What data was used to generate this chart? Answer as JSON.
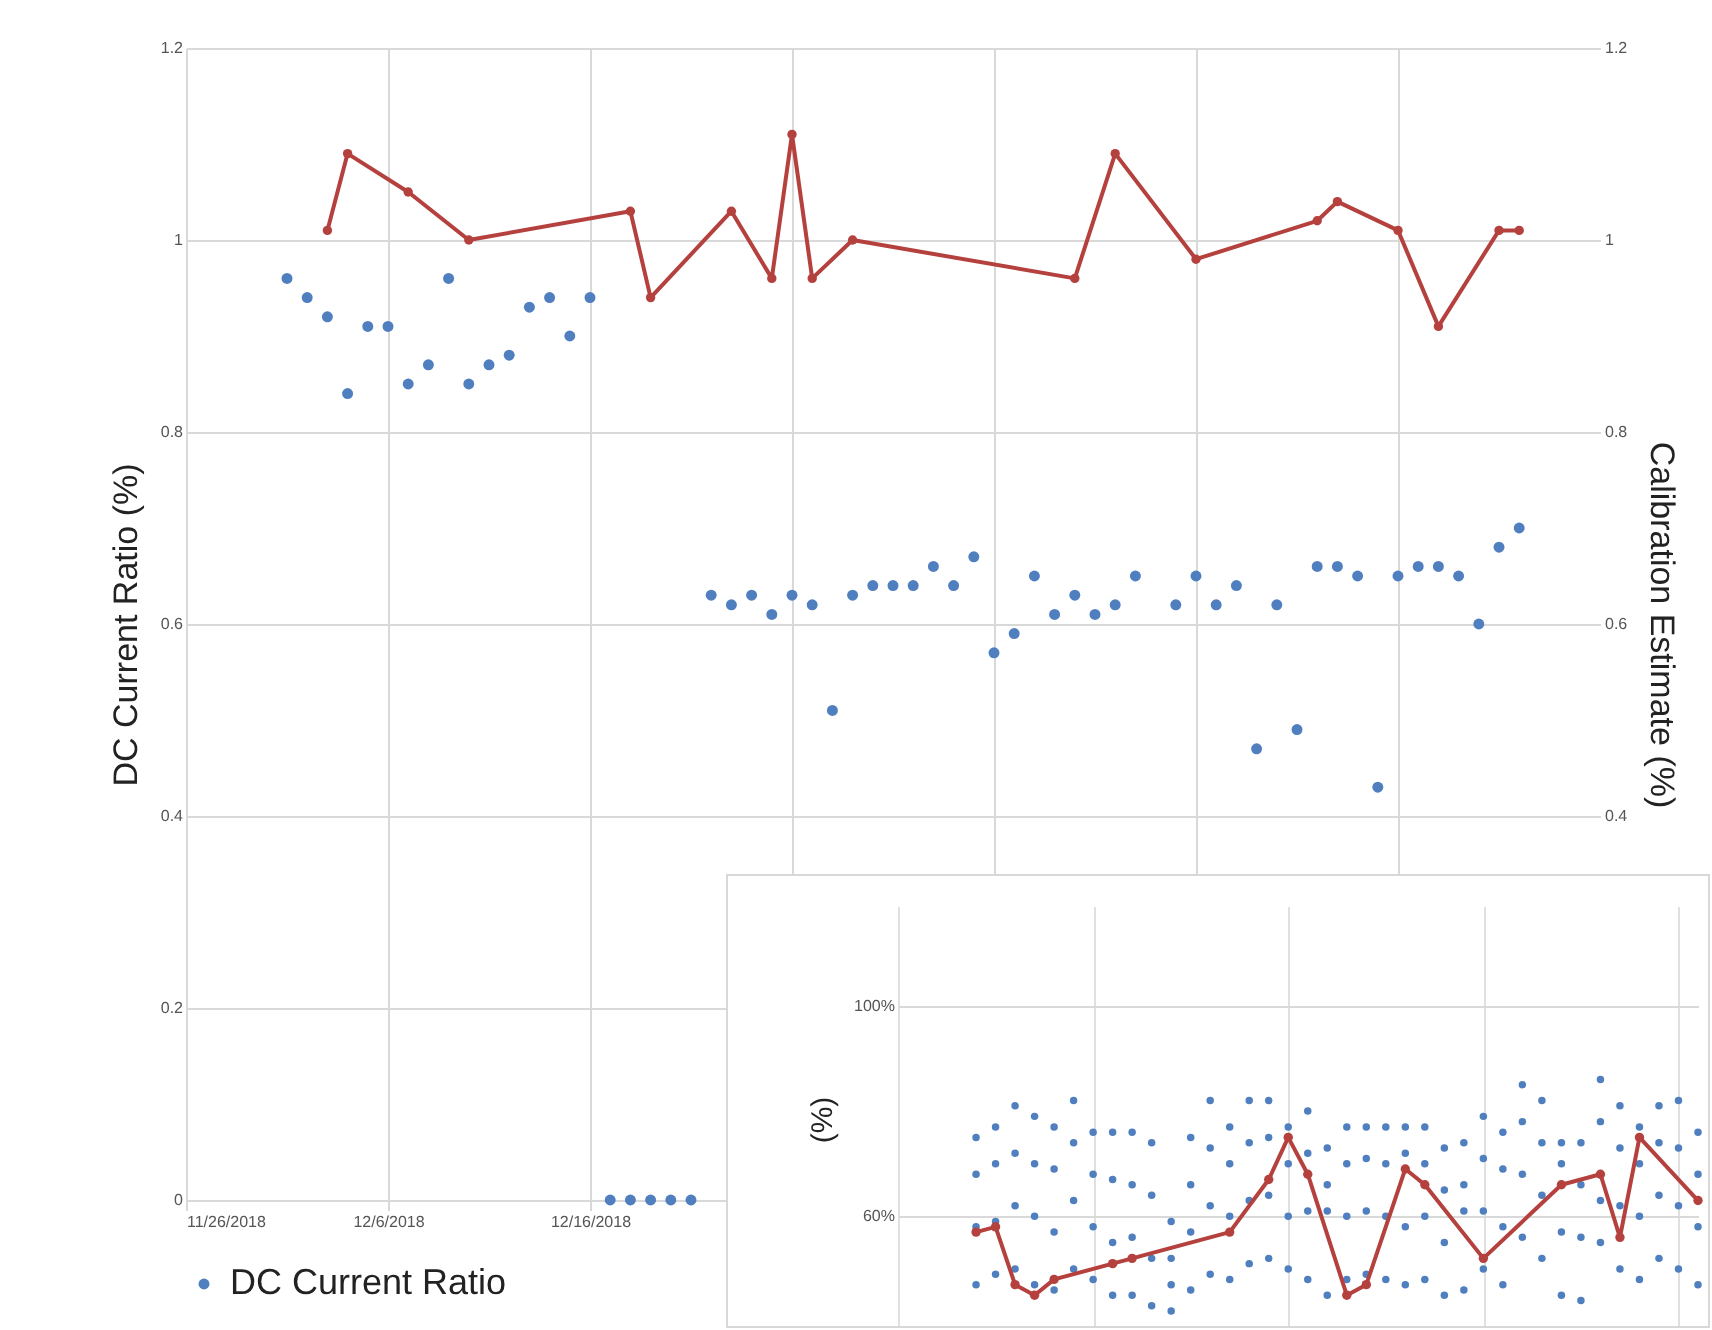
{
  "chart_data": [
    {
      "type": "scatter",
      "ylabel": "DC Current Ratio (%)",
      "y2label": "Calibration Estimate (%)",
      "xlim": [
        "2018-11-26",
        "2019-02-04"
      ],
      "xticks": [
        {
          "value": "2018-11-26",
          "label": "11/26/2018"
        },
        {
          "value": "2018-12-06",
          "label": "12/6/2018"
        },
        {
          "value": "2018-12-16",
          "label": "12/16/2018"
        },
        {
          "value": "2018-12-26",
          "label": null
        },
        {
          "value": "2019-01-05",
          "label": null
        },
        {
          "value": "2019-01-15",
          "label": null
        },
        {
          "value": "2019-01-25",
          "label": null
        }
      ],
      "ylim": [
        0,
        1.2
      ],
      "yticks": [
        0,
        0.2,
        0.4,
        0.6,
        0.8,
        1,
        1.2
      ],
      "y2lim": [
        0,
        1.2
      ],
      "y2ticks": [
        0.4,
        0.6,
        0.8,
        1,
        1.2
      ],
      "grid": true,
      "legend": "bottom",
      "marker": "circle",
      "series": [
        {
          "name": "DC Current Ratio",
          "color": "#4f7fbf",
          "x": [
            "2018-12-01",
            "2018-12-02",
            "2018-12-03",
            "2018-12-04",
            "2018-12-05",
            "2018-12-06",
            "2018-12-07",
            "2018-12-08",
            "2018-12-09",
            "2018-12-10",
            "2018-12-11",
            "2018-12-12",
            "2018-12-13",
            "2018-12-14",
            "2018-12-15",
            "2018-12-16",
            "2018-12-17",
            "2018-12-18",
            "2018-12-19",
            "2018-12-20",
            "2018-12-21",
            "2018-12-22",
            "2018-12-23",
            "2018-12-24",
            "2018-12-25",
            "2018-12-26",
            "2018-12-27",
            "2018-12-28",
            "2018-12-29",
            "2018-12-30",
            "2018-12-31",
            "2019-01-01",
            "2019-01-02",
            "2019-01-03",
            "2019-01-04",
            "2019-01-05",
            "2019-01-06",
            "2019-01-07",
            "2019-01-08",
            "2019-01-09",
            "2019-01-10",
            "2019-01-11",
            "2019-01-12",
            "2019-01-14",
            "2019-01-15",
            "2019-01-16",
            "2019-01-17",
            "2019-01-18",
            "2019-01-19",
            "2019-01-20",
            "2019-01-21",
            "2019-01-22",
            "2019-01-23",
            "2019-01-24",
            "2019-01-25",
            "2019-01-26",
            "2019-01-27",
            "2019-01-28",
            "2019-01-29",
            "2019-01-30",
            "2019-01-31"
          ],
          "values": [
            0.96,
            0.94,
            0.92,
            0.84,
            0.91,
            0.91,
            0.85,
            0.87,
            0.96,
            0.85,
            0.87,
            0.88,
            0.93,
            0.94,
            0.9,
            0.94,
            0,
            0,
            0,
            0,
            0,
            0.63,
            0.62,
            0.63,
            0.61,
            0.63,
            0.62,
            0.51,
            0.63,
            0.64,
            0.64,
            0.64,
            0.66,
            0.64,
            0.67,
            0.57,
            0.59,
            0.65,
            0.61,
            0.63,
            0.61,
            0.62,
            0.65,
            0.62,
            0.65,
            0.62,
            0.64,
            0.47,
            0.62,
            0.49,
            0.66,
            0.66,
            0.65,
            0.43,
            0.65,
            0.66,
            0.66,
            0.65,
            0.6,
            0.68,
            0.7
          ]
        },
        {
          "type": "line",
          "axis": "y2",
          "color": "#b5413e",
          "x": [
            "2018-12-03",
            "2018-12-04",
            "2018-12-07",
            "2018-12-10",
            "2018-12-18",
            "2018-12-19",
            "2018-12-23",
            "2018-12-25",
            "2018-12-26",
            "2018-12-27",
            "2018-12-29",
            "2019-01-09",
            "2019-01-11",
            "2019-01-15",
            "2019-01-21",
            "2019-01-22",
            "2019-01-25",
            "2019-01-27",
            "2019-01-30",
            "2019-01-31"
          ],
          "values": [
            1.01,
            1.09,
            1.05,
            1.0,
            1.03,
            0.94,
            1.03,
            0.96,
            1.11,
            0.96,
            1.0,
            0.96,
            1.09,
            0.98,
            1.02,
            1.04,
            1.01,
            0.91,
            1.01,
            1.01
          ]
        }
      ]
    },
    {
      "type": "scatter",
      "ylabel": "(%)",
      "categories": [
        null,
        null,
        null,
        null,
        null,
        null,
        null,
        null,
        null,
        null,
        null,
        null,
        null,
        null,
        null,
        null,
        null,
        null,
        null,
        null,
        null,
        null,
        null,
        null,
        null,
        null,
        null,
        null,
        null,
        null,
        null,
        null,
        null,
        null,
        null,
        null,
        null,
        null,
        null,
        null,
        null,
        null
      ],
      "ylim": [
        38,
        119
      ],
      "yticks": [
        {
          "value": 60,
          "label": "60%"
        },
        {
          "value": 100,
          "label": "100%"
        }
      ],
      "grid": true,
      "tick_labels": "y",
      "marker": "circle",
      "series": [
        {
          "color": "#4f7fbf",
          "values": [
            null,
            null,
            null,
            null,
            75,
            77,
            81,
            79,
            77,
            82,
            76,
            76,
            76,
            74,
            59,
            75,
            82,
            77,
            82,
            82,
            77,
            80,
            73,
            77,
            77,
            77,
            77,
            77,
            73,
            74,
            79,
            76,
            85,
            82,
            74,
            74,
            86,
            81,
            77,
            81,
            82,
            76
          ]
        },
        {
          "color": "#4f7fbf",
          "values": [
            null,
            null,
            null,
            null,
            68,
            70,
            72,
            70,
            69,
            74,
            68,
            67,
            66,
            64,
            52,
            66,
            73,
            70,
            74,
            75,
            70,
            72,
            66,
            70,
            71,
            70,
            72,
            70,
            65,
            66,
            71,
            69,
            78,
            74,
            70,
            66,
            78,
            73,
            70,
            74,
            73,
            68
          ]
        },
        {
          "color": "#4f7fbf",
          "values": [
            null,
            null,
            null,
            null,
            58,
            59,
            62,
            60,
            57,
            63,
            58,
            55,
            56,
            52,
            47,
            57,
            62,
            60,
            63,
            64,
            60,
            61,
            61,
            60,
            61,
            60,
            58,
            60,
            55,
            61,
            61,
            58,
            68,
            64,
            57,
            56,
            63,
            62,
            60,
            64,
            62,
            58
          ]
        },
        {
          "color": "#4f7fbf",
          "values": [
            null,
            null,
            null,
            null,
            47,
            49,
            50,
            47,
            46,
            50,
            48,
            45,
            45,
            43,
            42,
            46,
            49,
            48,
            51,
            52,
            50,
            48,
            45,
            48,
            49,
            48,
            47,
            48,
            45,
            46,
            50,
            47,
            56,
            52,
            45,
            44,
            55,
            50,
            48,
            52,
            50,
            47
          ]
        },
        {
          "type": "line",
          "color": "#b5413e",
          "values": [
            null,
            null,
            null,
            null,
            57,
            58,
            47,
            45,
            48,
            null,
            null,
            51,
            52,
            null,
            null,
            null,
            null,
            57,
            null,
            67,
            75,
            68,
            null,
            45,
            47,
            null,
            69,
            66,
            null,
            null,
            52,
            null,
            null,
            null,
            66,
            null,
            68,
            56,
            75,
            null,
            null,
            63
          ]
        }
      ]
    }
  ]
}
